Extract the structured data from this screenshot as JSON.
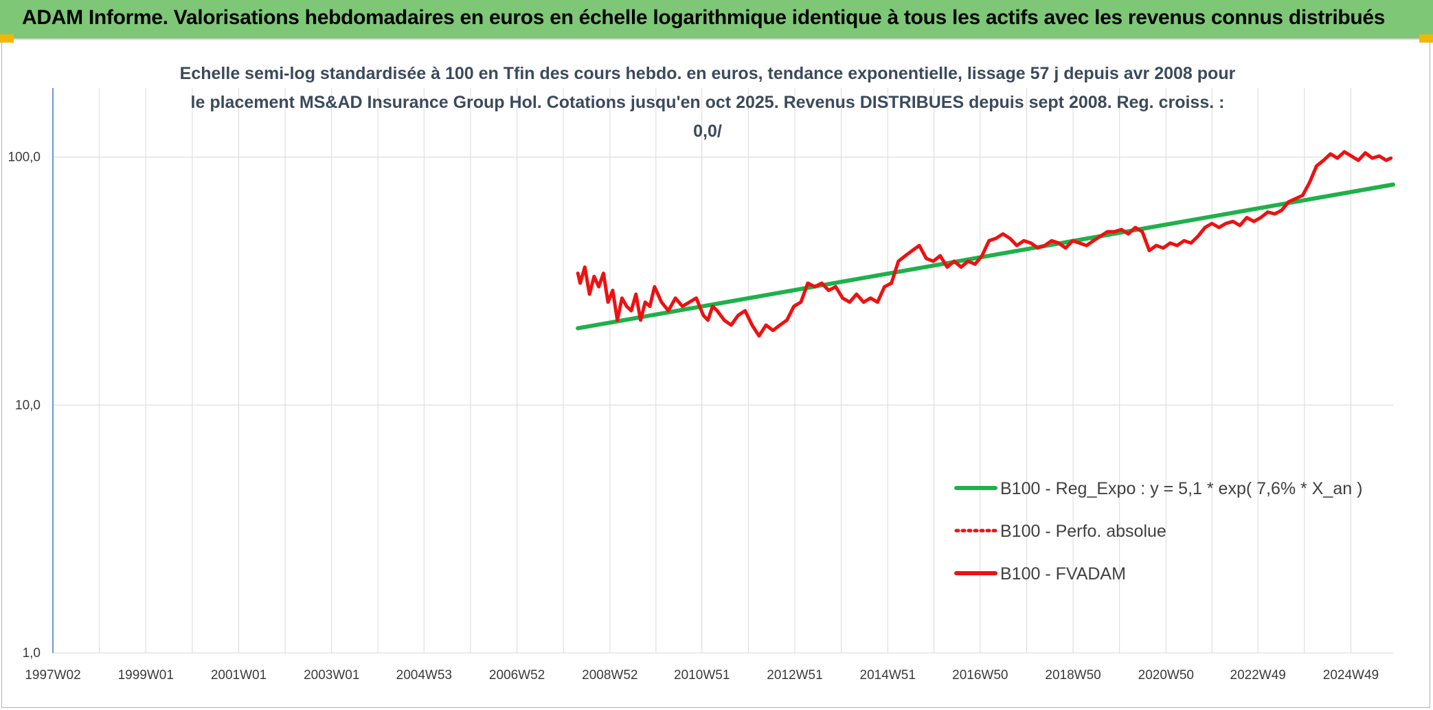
{
  "banner": {
    "title": "ADAM Informe. Valorisations hebdomadaires en euros en échelle logarithmique identique à tous les actifs avec les revenus connus distribués"
  },
  "colors": {
    "banner": "#7dc777",
    "corner_accent": "#f2b705",
    "regression": "#1fb04a",
    "fvadam": "#ee1111",
    "grid": "#d9d9d9",
    "y_axis_line": "#4472c4"
  },
  "chart_data": {
    "type": "line",
    "title": "Echelle semi-log standardisée à 100 en Tfin des cours hebdo. en euros, tendance exponentielle, lissage 57 j depuis avr 2008 pour le placement MS&AD Insurance Group Hol. Cotations jusqu'en oct 2025. Revenus DISTRIBUES depuis sept 2008. Reg. croiss. : 0,0/",
    "y_scale": "log",
    "ylim": [
      1,
      190
    ],
    "y_ticks": [
      1,
      10,
      100
    ],
    "y_tick_labels": [
      "1,0",
      "10,0",
      "100,0"
    ],
    "xlim": [
      1997.0,
      2025.85
    ],
    "x_ticks": [
      1997.0,
      1999.0,
      2001.0,
      2003.0,
      2004.99,
      2006.99,
      2008.99,
      2010.97,
      2012.97,
      2014.97,
      2016.96,
      2018.96,
      2020.96,
      2022.94,
      2024.94
    ],
    "x_tick_labels": [
      "1997W02",
      "1999W01",
      "2001W01",
      "2003W01",
      "2004W53",
      "2006W52",
      "2008W52",
      "2010W51",
      "2012W51",
      "2014W51",
      "2016W50",
      "2018W50",
      "2020W50",
      "2022W49",
      "2024W49"
    ],
    "grid": "on",
    "legend_position": "bottom-right",
    "series": [
      {
        "name": "B100 - Reg_Expo : y = 5,1 * exp( 7,6% *  X_an )",
        "style": "solid",
        "color": "#1fb04a",
        "x": [
          2008.3,
          2025.85
        ],
        "y": [
          20.4,
          77.5
        ]
      },
      {
        "name": "B100 - Perfo. absolue",
        "style": "dotted",
        "color": "#ee1111",
        "x": [],
        "y": []
      },
      {
        "name": "B100 - FVADAM",
        "style": "solid",
        "color": "#ee1111",
        "x": [
          2008.3,
          2008.35,
          2008.45,
          2008.55,
          2008.65,
          2008.75,
          2008.85,
          2008.95,
          2009.05,
          2009.15,
          2009.25,
          2009.35,
          2009.45,
          2009.55,
          2009.65,
          2009.75,
          2009.85,
          2009.95,
          2010.1,
          2010.25,
          2010.4,
          2010.55,
          2010.7,
          2010.85,
          2011.0,
          2011.1,
          2011.2,
          2011.3,
          2011.45,
          2011.6,
          2011.75,
          2011.9,
          2012.05,
          2012.2,
          2012.35,
          2012.5,
          2012.65,
          2012.8,
          2012.95,
          2013.1,
          2013.25,
          2013.4,
          2013.55,
          2013.7,
          2013.85,
          2014.0,
          2014.15,
          2014.3,
          2014.45,
          2014.6,
          2014.75,
          2014.9,
          2015.05,
          2015.2,
          2015.35,
          2015.5,
          2015.65,
          2015.8,
          2015.95,
          2016.1,
          2016.25,
          2016.4,
          2016.55,
          2016.7,
          2016.85,
          2017.0,
          2017.15,
          2017.3,
          2017.45,
          2017.6,
          2017.75,
          2017.9,
          2018.05,
          2018.2,
          2018.35,
          2018.5,
          2018.65,
          2018.8,
          2018.95,
          2019.1,
          2019.25,
          2019.4,
          2019.55,
          2019.7,
          2019.85,
          2020.0,
          2020.15,
          2020.3,
          2020.45,
          2020.6,
          2020.75,
          2020.9,
          2021.05,
          2021.2,
          2021.35,
          2021.5,
          2021.65,
          2021.8,
          2021.95,
          2022.1,
          2022.25,
          2022.4,
          2022.55,
          2022.7,
          2022.85,
          2023.0,
          2023.15,
          2023.3,
          2023.45,
          2023.6,
          2023.75,
          2023.9,
          2024.05,
          2024.2,
          2024.35,
          2024.5,
          2024.65,
          2024.8,
          2024.95,
          2025.1,
          2025.25,
          2025.4,
          2025.55,
          2025.7,
          2025.8
        ],
        "y": [
          34,
          31,
          36,
          28,
          33,
          30,
          34,
          26,
          29,
          22,
          27,
          25,
          24,
          28,
          22,
          26,
          25,
          30,
          26,
          24,
          27,
          25,
          26,
          27,
          23,
          22,
          25,
          24,
          22,
          21,
          23,
          24,
          21,
          19,
          21,
          20,
          21,
          22,
          25,
          26,
          31,
          30,
          31,
          29,
          30,
          27,
          26,
          28,
          26,
          27,
          26,
          30,
          31,
          38,
          40,
          42,
          44,
          39,
          38,
          40,
          36,
          38,
          36,
          38,
          37,
          40,
          46,
          47,
          49,
          47,
          44,
          46,
          45,
          43,
          44,
          46,
          45,
          43,
          46,
          45,
          44,
          46,
          48,
          50,
          50,
          51,
          49,
          52,
          50,
          42,
          44,
          43,
          45,
          44,
          46,
          45,
          48,
          52,
          54,
          52,
          54,
          55,
          53,
          57,
          55,
          57,
          60,
          59,
          61,
          66,
          68,
          70,
          79,
          92,
          97,
          103,
          99,
          105,
          101,
          97,
          104,
          99,
          101,
          97,
          99
        ]
      }
    ]
  }
}
